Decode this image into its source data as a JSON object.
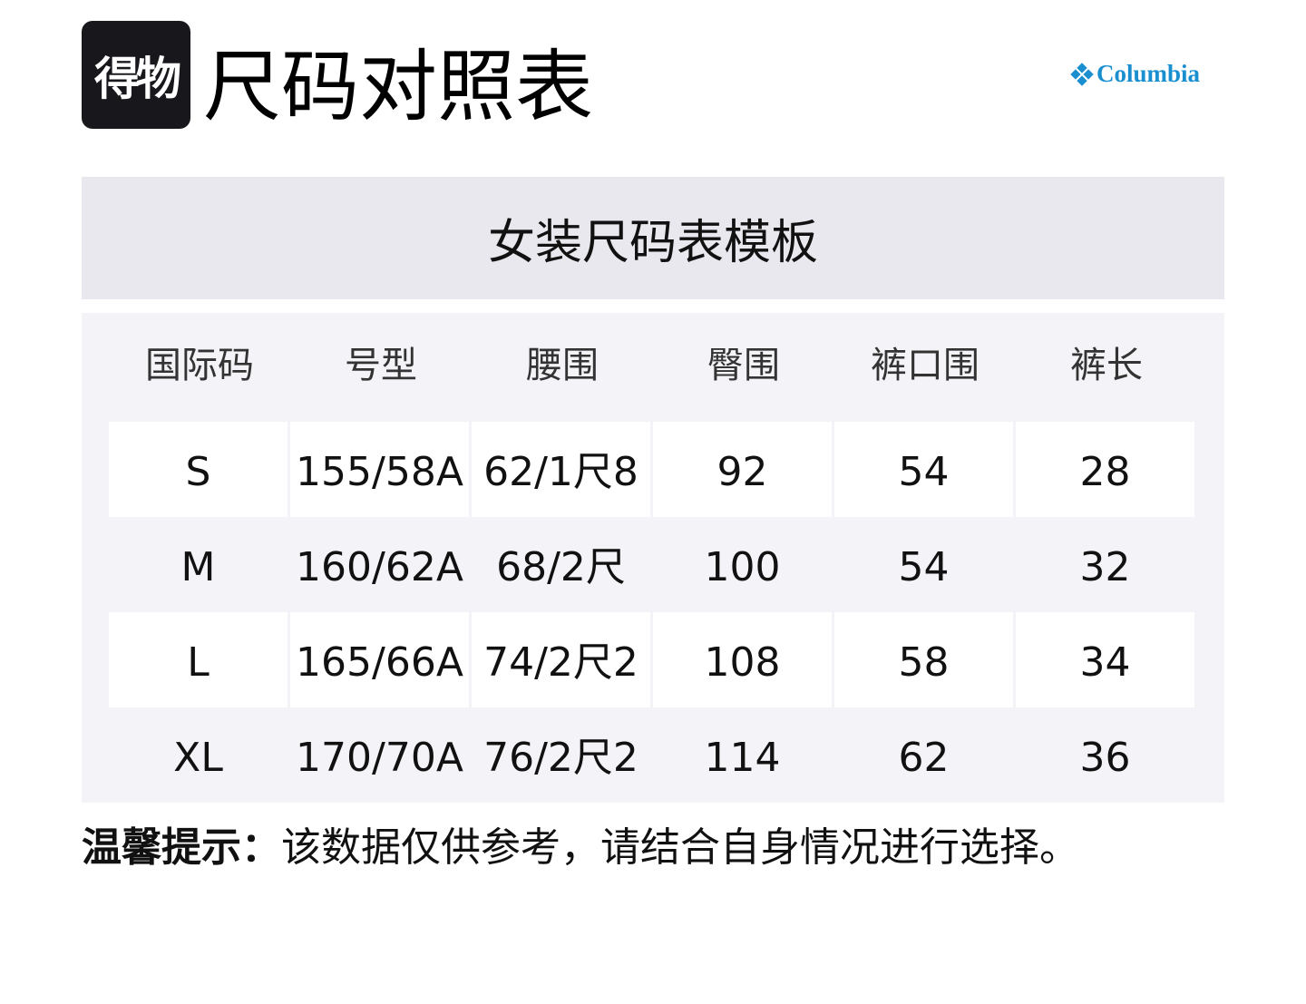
{
  "header": {
    "logo_text": "得物",
    "title": "尺码对照表",
    "brand": "Columbia",
    "brand_color": "#1a8fd0"
  },
  "table": {
    "title": "女装尺码表模板",
    "columns": [
      "国际码",
      "号型",
      "腰围",
      "臀围",
      "裤口围",
      "裤长"
    ],
    "rows": [
      [
        "S",
        "155/58A",
        "62/1尺8",
        "92",
        "54",
        "28"
      ],
      [
        "M",
        "160/62A",
        "68/2尺",
        "100",
        "54",
        "32"
      ],
      [
        "L",
        "165/66A",
        "74/2尺2",
        "108",
        "58",
        "34"
      ],
      [
        "XL",
        "170/70A",
        "76/2尺2",
        "114",
        "62",
        "36"
      ]
    ]
  },
  "tip": {
    "label": "温馨提示：",
    "text": "该数据仅供参考，请结合自身情况进行选择。"
  }
}
